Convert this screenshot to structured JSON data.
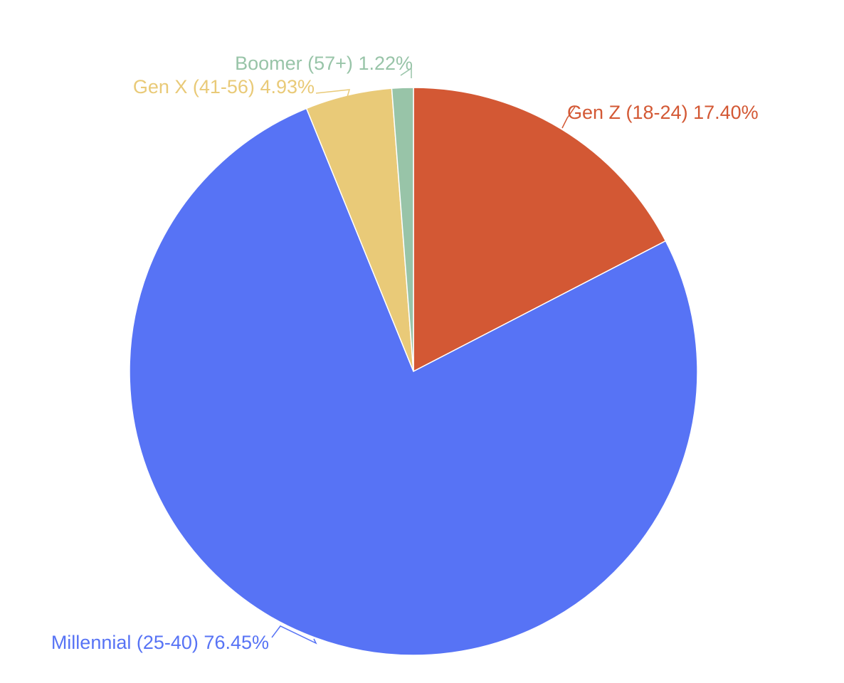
{
  "chart_data": {
    "type": "pie",
    "title": "",
    "legend": "none",
    "slices": [
      {
        "name": "Gen Z (18-24)",
        "value": 17.4,
        "label": "17.40%",
        "color": "#d35834"
      },
      {
        "name": "Millennial (25-40)",
        "value": 76.45,
        "label": "76.45%",
        "color": "#5773f5"
      },
      {
        "name": "Gen X (41-56)",
        "value": 4.93,
        "label": "4.93%",
        "color": "#e9ca78"
      },
      {
        "name": "Boomer (57+)",
        "value": 1.22,
        "label": "1.22%",
        "color": "#98c4a8"
      }
    ],
    "start_angle": "12 o'clock",
    "direction": "clockwise"
  }
}
